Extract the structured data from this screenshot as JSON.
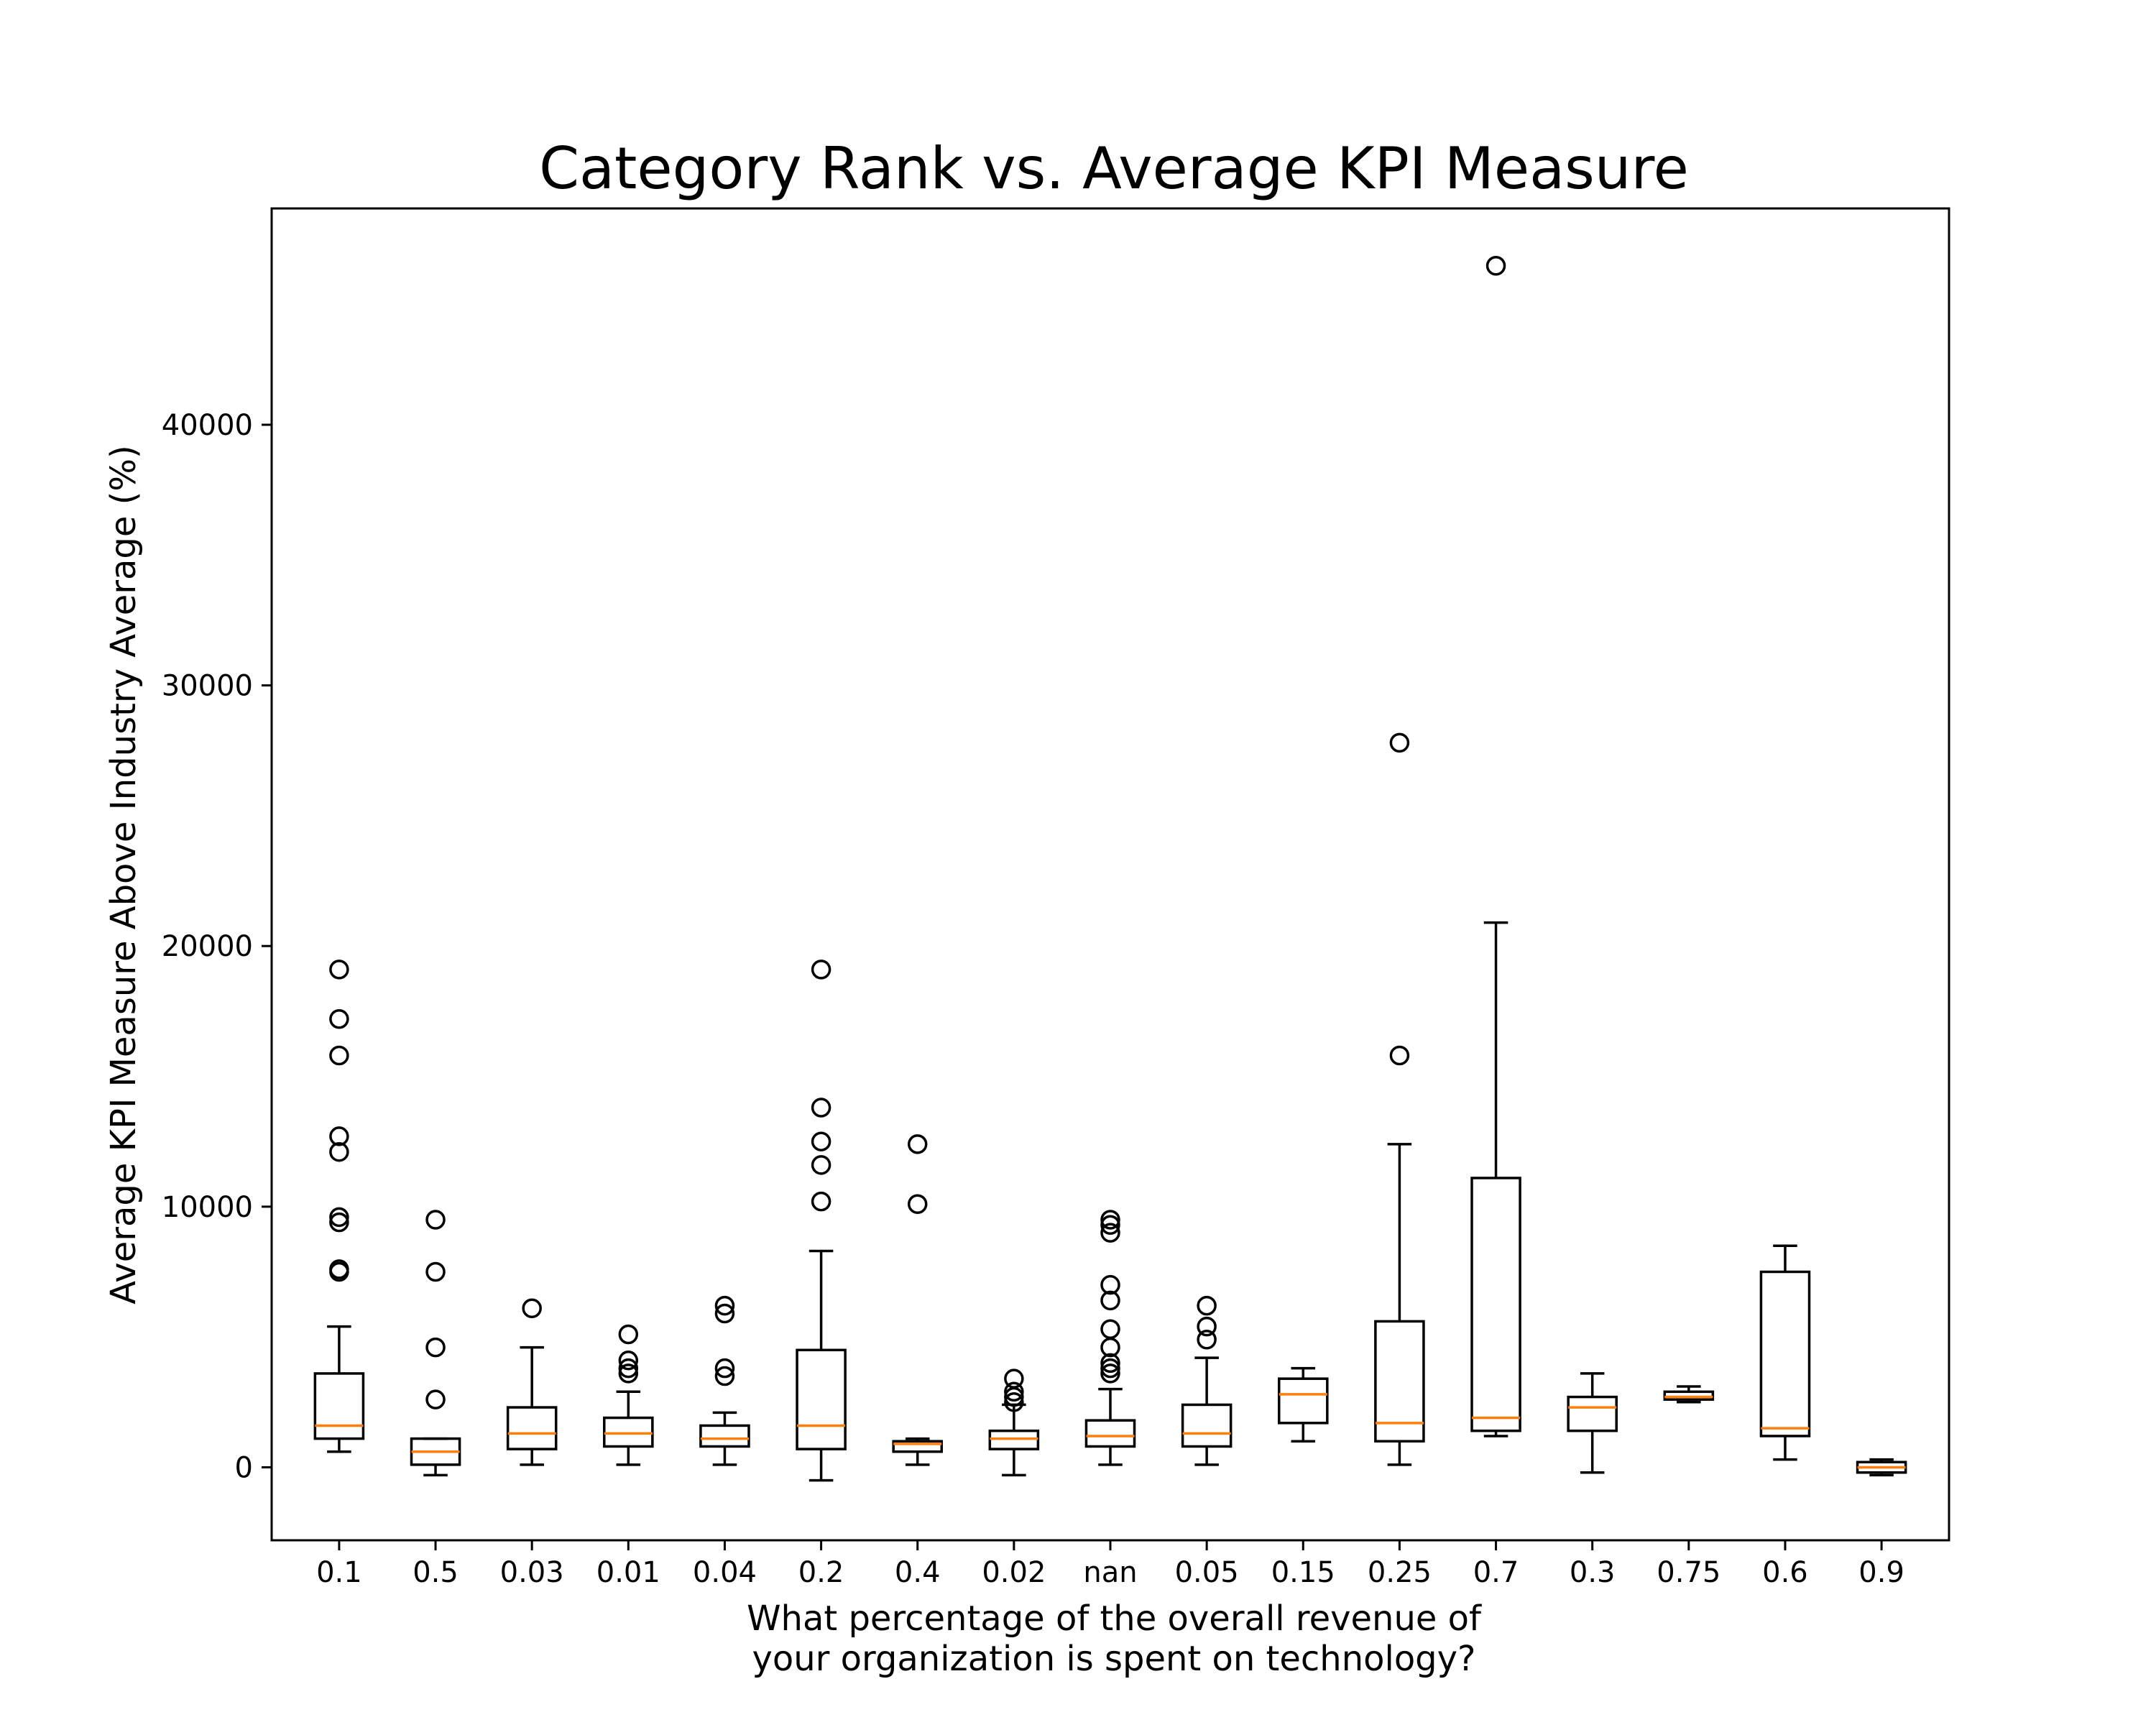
{
  "chart_data": {
    "type": "box",
    "title": "Category Rank vs. Average KPI Measure",
    "xlabel_lines": [
      "What percentage of the overall revenue of",
      "your organization is spent on technology?"
    ],
    "ylabel": "Average KPI Measure Above Industry Average (%)",
    "ylim": [
      -2800,
      48300
    ],
    "yticks": [
      0,
      10000,
      20000,
      30000,
      40000
    ],
    "grid": false,
    "colors": {
      "median": "#ff7f0e",
      "stroke": "#000000"
    },
    "boxes": [
      {
        "category": "0.1",
        "whislo": 600,
        "q1": 1100,
        "med": 1600,
        "q3": 3600,
        "whishi": 5400,
        "fliers": [
          7500,
          7600,
          9400,
          9600,
          12100,
          12700,
          15800,
          17200,
          19100
        ]
      },
      {
        "category": "0.5",
        "whislo": -300,
        "q1": 100,
        "med": 600,
        "q3": 1100,
        "whishi": 1100,
        "fliers": [
          2600,
          4600,
          7500,
          9500
        ]
      },
      {
        "category": "0.03",
        "whislo": 100,
        "q1": 700,
        "med": 1300,
        "q3": 2300,
        "whishi": 4600,
        "fliers": [
          6100
        ]
      },
      {
        "category": "0.01",
        "whislo": 100,
        "q1": 800,
        "med": 1300,
        "q3": 1900,
        "whishi": 2900,
        "fliers": [
          3600,
          3800,
          4100,
          5100
        ]
      },
      {
        "category": "0.04",
        "whislo": 100,
        "q1": 800,
        "med": 1100,
        "q3": 1600,
        "whishi": 2100,
        "fliers": [
          3500,
          3800,
          5900,
          6200
        ]
      },
      {
        "category": "0.2",
        "whislo": -500,
        "q1": 700,
        "med": 1600,
        "q3": 4500,
        "whishi": 8300,
        "fliers": [
          10200,
          11600,
          12500,
          13800,
          19100
        ]
      },
      {
        "category": "0.4",
        "whislo": 100,
        "q1": 600,
        "med": 900,
        "q3": 1000,
        "whishi": 1100,
        "fliers": [
          10100,
          12400
        ]
      },
      {
        "category": "0.02",
        "whislo": -300,
        "q1": 700,
        "med": 1100,
        "q3": 1400,
        "whishi": 2400,
        "fliers": [
          2500,
          2700,
          2900,
          3400
        ]
      },
      {
        "category": "nan",
        "whislo": 100,
        "q1": 800,
        "med": 1200,
        "q3": 1800,
        "whishi": 3000,
        "fliers": [
          3600,
          3800,
          4000,
          4600,
          5300,
          6400,
          7000,
          9000,
          9300,
          9500
        ]
      },
      {
        "category": "0.05",
        "whislo": 100,
        "q1": 800,
        "med": 1300,
        "q3": 2400,
        "whishi": 4200,
        "fliers": [
          4900,
          5400,
          6200
        ]
      },
      {
        "category": "0.15",
        "whislo": 1000,
        "q1": 1700,
        "med": 2800,
        "q3": 3400,
        "whishi": 3800,
        "fliers": []
      },
      {
        "category": "0.25",
        "whislo": 100,
        "q1": 1000,
        "med": 1700,
        "q3": 5600,
        "whishi": 12400,
        "fliers": [
          15800,
          27800
        ]
      },
      {
        "category": "0.7",
        "whislo": 1200,
        "q1": 1400,
        "med": 1900,
        "q3": 11100,
        "whishi": 20900,
        "fliers": [
          46100
        ]
      },
      {
        "category": "0.3",
        "whislo": -200,
        "q1": 1400,
        "med": 2300,
        "q3": 2700,
        "whishi": 3600,
        "fliers": []
      },
      {
        "category": "0.75",
        "whislo": 2500,
        "q1": 2600,
        "med": 2700,
        "q3": 2900,
        "whishi": 3100,
        "fliers": []
      },
      {
        "category": "0.6",
        "whislo": 300,
        "q1": 1200,
        "med": 1500,
        "q3": 7500,
        "whishi": 8500,
        "fliers": []
      },
      {
        "category": "0.9",
        "whislo": -300,
        "q1": -200,
        "med": 0,
        "q3": 200,
        "whishi": 300,
        "fliers": []
      }
    ]
  }
}
